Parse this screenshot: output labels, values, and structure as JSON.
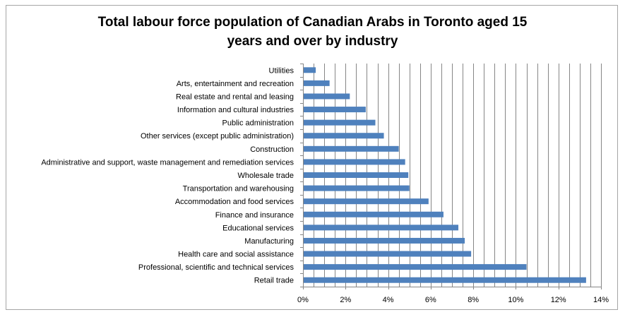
{
  "chart_data": {
    "type": "bar",
    "orientation": "horizontal",
    "title_line1": "Total labour force population of Canadian Arabs in Toronto aged 15",
    "title_line2": "years and over by industry",
    "categories": [
      "Utilities",
      "Arts, entertainment and recreation",
      "Real estate and rental and leasing",
      "Information and cultural industries",
      "Public administration",
      "Other services (except public administration)",
      "Construction",
      "Administrative and support, waste management and remediation services",
      "Wholesale trade",
      "Transportation and warehousing",
      "Accommodation and food services",
      "Finance and insurance",
      "Educational services",
      "Manufacturing",
      "Health care and social assistance",
      "Professional, scientific and technical services",
      "Retail trade"
    ],
    "values": [
      0.6,
      1.25,
      2.2,
      2.95,
      3.4,
      3.8,
      4.5,
      4.8,
      4.95,
      5.0,
      5.9,
      6.6,
      7.3,
      7.6,
      7.9,
      10.5,
      13.3
    ],
    "xlim": [
      0,
      14
    ],
    "x_ticks": [
      "0%",
      "2%",
      "4%",
      "6%",
      "8%",
      "10%",
      "12%",
      "14%"
    ],
    "gridlines": "vertical",
    "legend": "none",
    "bar_color": "#4f81bd"
  }
}
